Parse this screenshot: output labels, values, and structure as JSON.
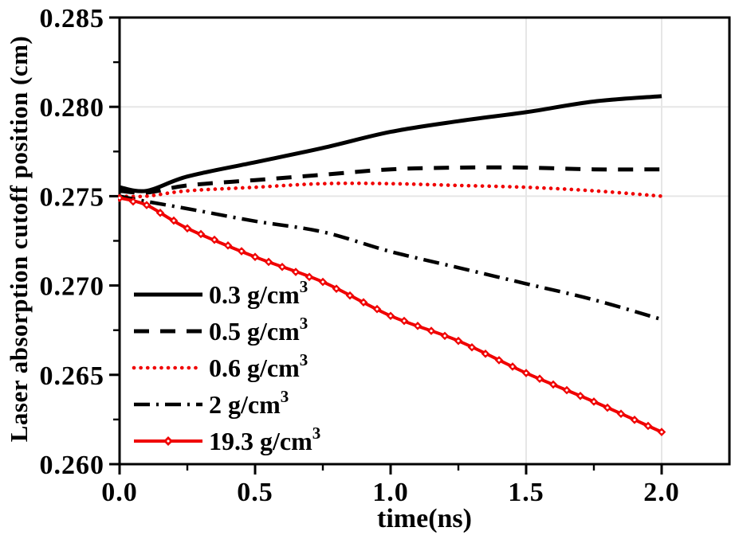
{
  "chart_data": {
    "type": "line",
    "title": "",
    "xlabel": "time(ns)",
    "ylabel": "Laser absorption cutoff position (cm)",
    "xlim": [
      0.0,
      2.25
    ],
    "ylim": [
      0.26,
      0.285
    ],
    "x_major_ticks": [
      0.0,
      0.5,
      1.0,
      1.5,
      2.0
    ],
    "x_tick_labels": [
      "0.0",
      "0.5",
      "1.0",
      "1.5",
      "2.0"
    ],
    "x_minor_ticks": [
      0.25,
      0.75,
      1.25,
      1.75
    ],
    "y_major_ticks": [
      0.285,
      0.28,
      0.275,
      0.27,
      0.265,
      0.26
    ],
    "y_tick_labels": [
      "0.285",
      "0.280",
      "0.275",
      "0.270",
      "0.265",
      "0.260"
    ],
    "y_minor_ticks": [
      0.2825,
      0.2775,
      0.2725,
      0.2675,
      0.2625
    ],
    "grid": {
      "h_lines_at": [
        0.28,
        0.275
      ],
      "v_lines_at": [
        1.5,
        2.0
      ],
      "color": "#e6e6e6"
    },
    "legend": {
      "position": "inside-lower-left"
    },
    "colors": {
      "black_series": "#000000",
      "red_series": "#f00000"
    },
    "t": [
      0,
      0.1,
      0.25,
      0.5,
      0.75,
      1.0,
      1.25,
      1.5,
      1.75,
      2.0
    ],
    "series": [
      {
        "name": "0.3 g/cm3",
        "legend_text": "0.3 g/cm",
        "legend_sup": "3",
        "color": "#000000",
        "style": "solid",
        "values": [
          0.2755,
          0.2753,
          0.2761,
          0.2769,
          0.2777,
          0.2786,
          0.2792,
          0.2797,
          0.2803,
          0.2806
        ]
      },
      {
        "name": "0.5 g/cm3",
        "legend_text": "0.5 g/cm",
        "legend_sup": "3",
        "color": "#000000",
        "style": "dashed",
        "values": [
          0.2753,
          0.2752,
          0.2756,
          0.2759,
          0.2762,
          0.2765,
          0.2766,
          0.2766,
          0.2765,
          0.2765
        ]
      },
      {
        "name": "0.6 g/cm3",
        "legend_text": "0.6 g/cm",
        "legend_sup": "3",
        "color": "#f00000",
        "style": "dotted",
        "values": [
          0.275,
          0.275,
          0.2753,
          0.2755,
          0.2757,
          0.2757,
          0.2756,
          0.2755,
          0.2753,
          0.275
        ]
      },
      {
        "name": "2 g/cm3",
        "legend_text": "2 g/cm",
        "legend_sup": "3",
        "color": "#000000",
        "style": "dashdot",
        "values": [
          0.275,
          0.2747,
          0.2743,
          0.2736,
          0.273,
          0.2719,
          0.271,
          0.2701,
          0.2692,
          0.2681
        ]
      },
      {
        "name": "19.3 g/cm3",
        "legend_text": "19.3 g/cm",
        "legend_sup": "3",
        "color": "#f00000",
        "style": "solid-diamond",
        "marker": "open-diamond",
        "marker_step_ns": 0.05,
        "values": [
          0.2749,
          0.2745,
          0.2732,
          0.2716,
          0.2702,
          0.2683,
          0.2669,
          0.2651,
          0.2635,
          0.2618
        ]
      }
    ]
  }
}
